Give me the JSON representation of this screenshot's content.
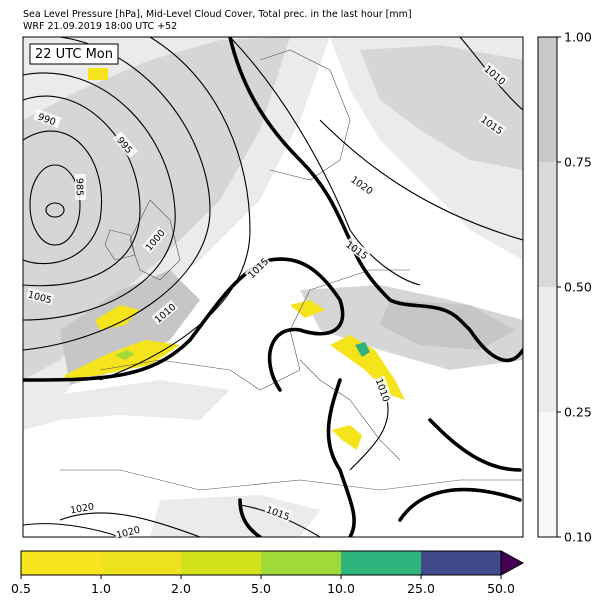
{
  "header": {
    "title_lines": [
      "Sea Level Pressure [hPa], Mid-Level Cloud Cover, Total prec. in the last hour [mm]",
      "WRF 21.09.2019 18:00 UTC +52"
    ]
  },
  "map": {
    "time_label": "22 UTC Mon",
    "isobar_labels": [
      "990",
      "995",
      "985",
      "1000",
      "1005",
      "1010",
      "1015",
      "1020",
      "1015",
      "1010",
      "1015",
      "1010",
      "1020",
      "1020",
      "1015"
    ]
  },
  "cloud_colorbar": {
    "colors": [
      "#f7f7f7",
      "#ebebeb",
      "#d9d9d9",
      "#c8c8c8"
    ],
    "ticks": [
      {
        "value": 0.1,
        "label": "0.10"
      },
      {
        "value": 0.25,
        "label": "0.25"
      },
      {
        "value": 0.5,
        "label": "0.50"
      },
      {
        "value": 0.75,
        "label": "0.75"
      },
      {
        "value": 1,
        "label": "1.00"
      }
    ]
  },
  "precip_colorbar": {
    "colors": [
      "#f7e41f",
      "#ece21d",
      "#d3e21b",
      "#a0da39",
      "#2fb47c",
      "#3e4a89"
    ],
    "extend_color": "#440154",
    "ticks": [
      {
        "value": 0.5,
        "label": "0.5"
      },
      {
        "value": 1,
        "label": "1.0"
      },
      {
        "value": 2,
        "label": "2.0"
      },
      {
        "value": 5,
        "label": "5.0"
      },
      {
        "value": 10,
        "label": "10.0"
      },
      {
        "value": 25,
        "label": "25.0"
      },
      {
        "value": 50,
        "label": "50.0"
      }
    ]
  }
}
